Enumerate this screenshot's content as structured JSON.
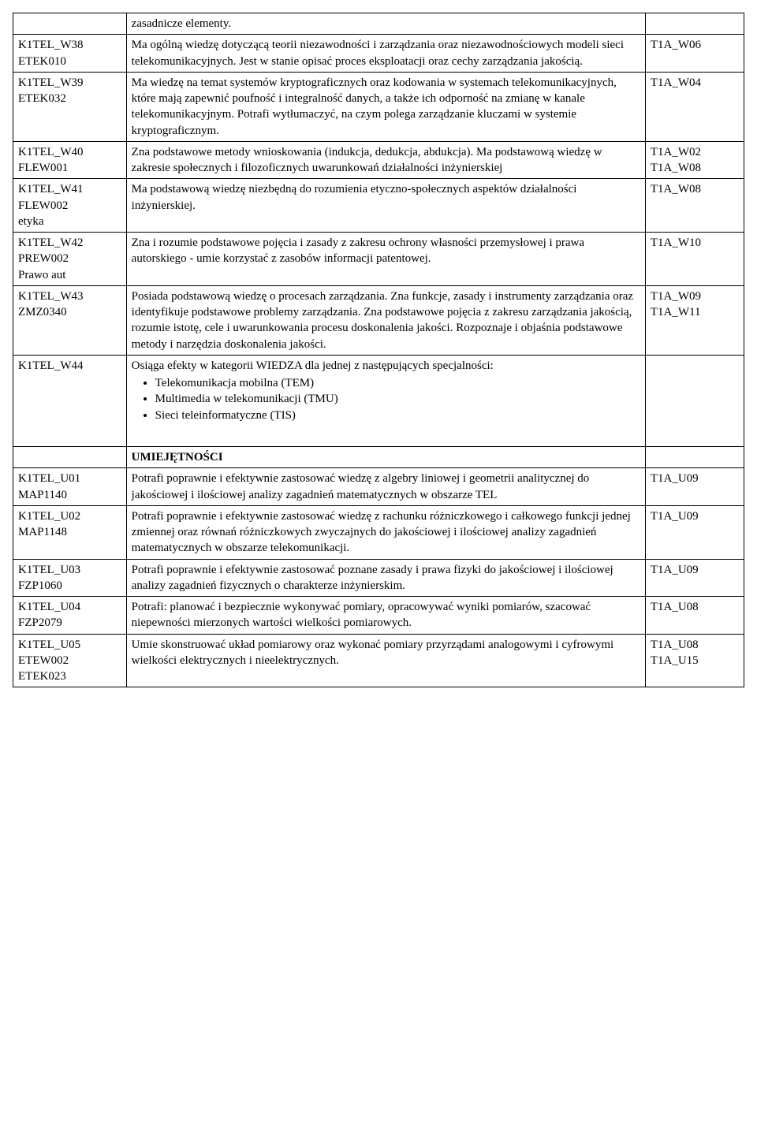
{
  "rows": [
    {
      "c1": "",
      "c2": "zasadnicze elementy.",
      "c3": ""
    },
    {
      "c1": "K1TEL_W38\nETEK010",
      "c2": "Ma ogólną wiedzę dotyczącą teorii niezawodności i zarządzania oraz niezawodnościowych modeli sieci telekomunikacyjnych. Jest w stanie opisać proces eksploatacji oraz cechy zarządzania jakością.",
      "c3": "T1A_W06"
    },
    {
      "c1": "K1TEL_W39\nETEK032",
      "c2": "Ma wiedzę na temat systemów kryptograficznych oraz kodowania w systemach telekomunikacyjnych, które mają zapewnić poufność i integralność danych, a także ich odporność na zmianę w kanale telekomunikacyjnym. Potrafi wytłumaczyć, na czym polega zarządzanie kluczami w systemie kryptograficznym.",
      "c3": "T1A_W04"
    },
    {
      "c1": "K1TEL_W40\nFLEW001",
      "c2": "Zna podstawowe metody wnioskowania (indukcja, dedukcja, abdukcja). Ma podstawową wiedzę w zakresie społecznych i filozoficznych uwarunkowań działalności inżynierskiej",
      "c3": "T1A_W02\nT1A_W08"
    },
    {
      "c1": "K1TEL_W41\nFLEW002\netyka",
      "c2": "Ma podstawową wiedzę niezbędną do rozumienia etyczno-społecznych aspektów działalności inżynierskiej.",
      "c3": "T1A_W08"
    },
    {
      "c1": "K1TEL_W42\nPREW002\nPrawo aut",
      "c2": "Zna i rozumie podstawowe pojęcia i zasady z zakresu ochrony własności przemysłowej i prawa autorskiego - umie korzystać z zasobów informacji patentowej.",
      "c3": "T1A_W10"
    },
    {
      "c1": "K1TEL_W43\nZMZ0340",
      "c2": "Posiada podstawową wiedzę o procesach zarządzania. Zna funkcje, zasady i instrumenty zarządzania oraz identyfikuje podstawowe problemy zarządzania. Zna podstawowe pojęcia z zakresu zarządzania jakością, rozumie istotę, cele i uwarunkowania procesu doskonalenia jakości. Rozpoznaje i objaśnia podstawowe metody i narzędzia doskonalenia jakości.",
      "c3": "T1A_W09\nT1A_W11"
    },
    {
      "c1": "K1TEL_W44",
      "c2_intro": "Osiąga efekty w kategorii WIEDZA dla jednej z następujących specjalności:",
      "c2_list": [
        "Telekomunikacja mobilna (TEM)",
        "Multimedia w telekomunikacji (TMU)",
        "Sieci teleinformatyczne (TIS)"
      ],
      "c3": ""
    },
    {
      "c1": "",
      "c2_heading": "UMIEJĘTNOŚCI",
      "c3": ""
    },
    {
      "c1": "K1TEL_U01\nMAP1140",
      "c2": "Potrafi poprawnie i efektywnie zastosować wiedzę z algebry liniowej i geometrii analitycznej do jakościowej i ilościowej analizy zagadnień matematycznych w obszarze TEL",
      "c3": "T1A_U09"
    },
    {
      "c1": "K1TEL_U02\nMAP1148",
      "c2": "Potrafi poprawnie i efektywnie zastosować wiedzę z rachunku różniczkowego i całkowego  funkcji jednej zmiennej oraz równań różniczkowych zwyczajnych do jakościowej i ilościowej analizy  zagadnień matematycznych w obszarze telekomunikacji.",
      "c3": "T1A_U09"
    },
    {
      "c1": "K1TEL_U03\nFZP1060",
      "c2": "Potrafi poprawnie i efektywnie zastosować poznane zasady  i prawa fizyki do jakościowej i ilościowej analizy  zagadnień fizycznych o charakterze inżynierskim.",
      "c3": "T1A_U09"
    },
    {
      "c1": "K1TEL_U04\nFZP2079",
      "c2": " Potrafi: planować i bezpiecznie wykonywać pomiary,  opracowywać wyniki pomiarów, szacować niepewności  mierzonych wartości wielkości pomiarowych.",
      "c3": "T1A_U08"
    },
    {
      "c1": "K1TEL_U05\nETEW002\nETEK023",
      "c2": "Umie skonstruować układ pomiarowy oraz wykonać pomiary przyrządami analogowymi i cyfrowymi wielkości elektrycznych i nieelektrycznych.",
      "c3": "T1A_U08\nT1A_U15"
    }
  ]
}
